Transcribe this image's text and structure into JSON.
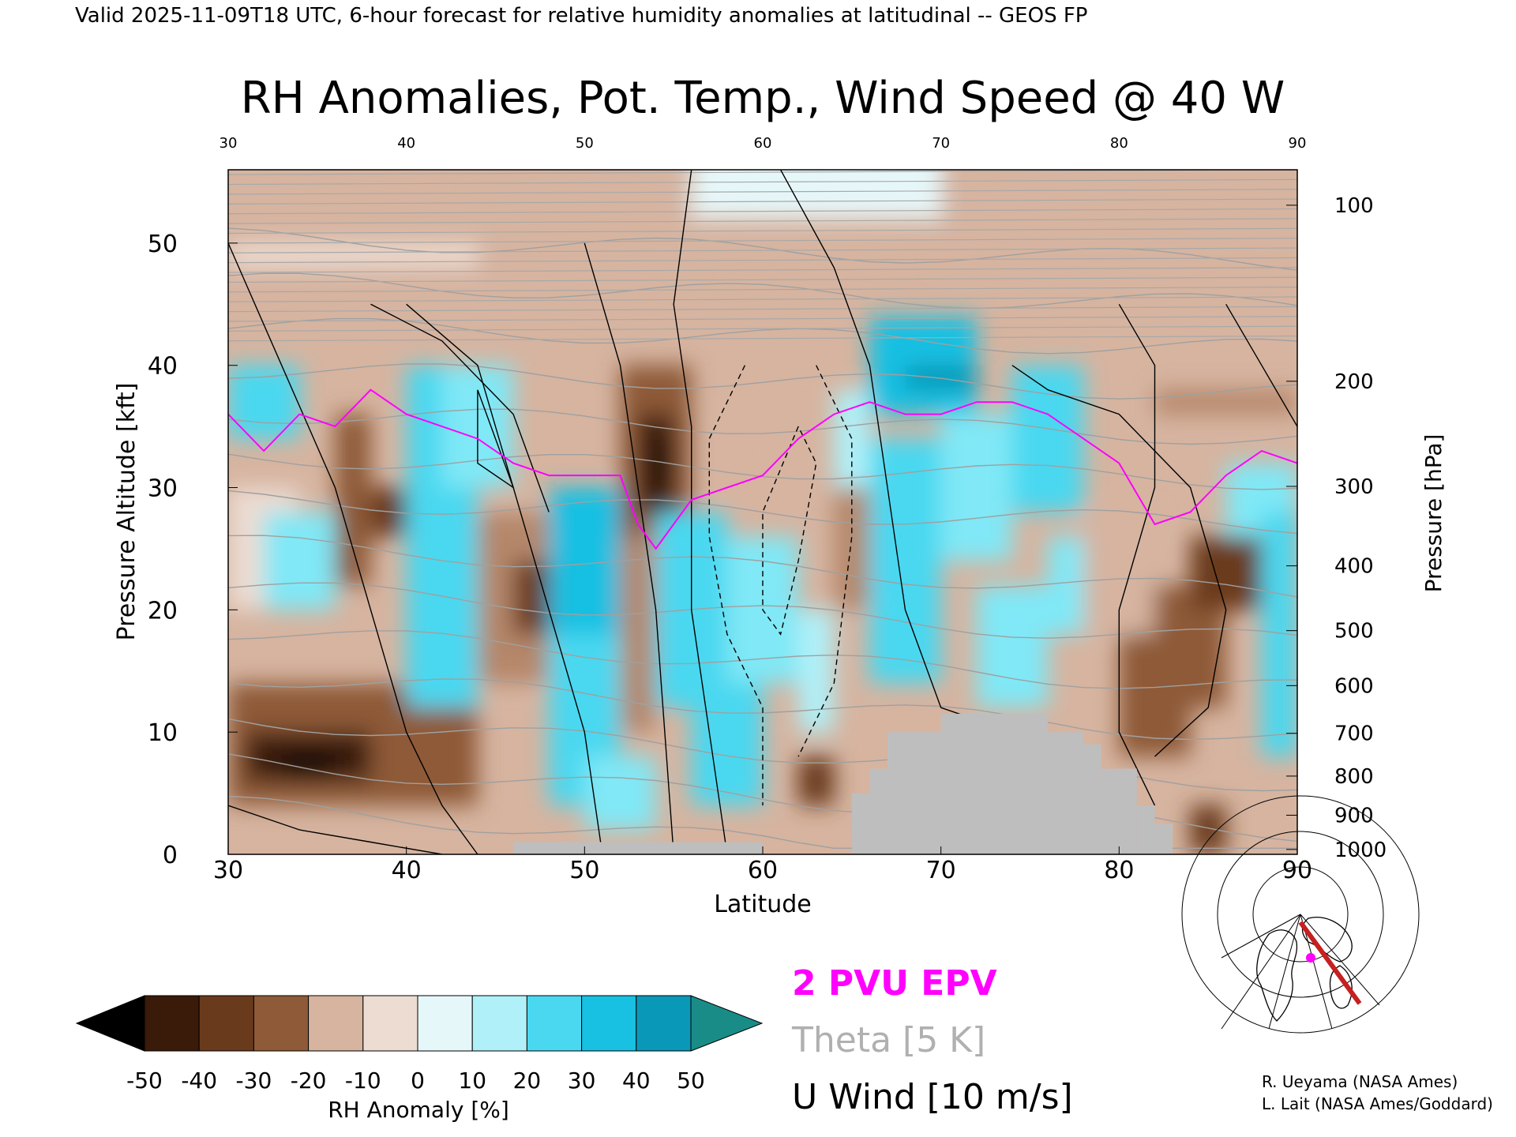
{
  "header": "Valid 2025-11-09T18 UTC, 6-hour forecast for relative humidity anomalies at latitudinal -- GEOS FP",
  "chart_data": {
    "type": "heatmap",
    "title": "RH Anomalies, Pot. Temp., Wind Speed @ 40 W",
    "xlabel": "Latitude",
    "ylabel": "Pressure Altitude [kft]",
    "y2label": "Pressure [hPa]",
    "xlim": [
      30,
      90
    ],
    "ylim": [
      0,
      56
    ],
    "x_ticks": [
      30,
      40,
      50,
      60,
      70,
      80,
      90
    ],
    "y_ticks": [
      0,
      10,
      20,
      30,
      40,
      50
    ],
    "pressure_ticks": [
      {
        "label": "100",
        "kft": 53.1
      },
      {
        "label": "200",
        "kft": 38.7
      },
      {
        "label": "300",
        "kft": 30.1
      },
      {
        "label": "400",
        "kft": 23.6
      },
      {
        "label": "500",
        "kft": 18.3
      },
      {
        "label": "600",
        "kft": 13.8
      },
      {
        "label": "700",
        "kft": 9.9
      },
      {
        "label": "800",
        "kft": 6.4
      },
      {
        "label": "900",
        "kft": 3.2
      },
      {
        "label": "1000",
        "kft": 0.4
      }
    ],
    "colorbar": {
      "label": "RH Anomaly [%]",
      "ticks": [
        "-50",
        "-40",
        "-30",
        "-20",
        "-10",
        "0",
        "10",
        "20",
        "30",
        "40",
        "50"
      ],
      "colors": [
        "#000000",
        "#3a1a08",
        "#6a3a1c",
        "#8e5a38",
        "#b5876a",
        "#d6b4a0",
        "#ecdcd2",
        "#e6f7f9",
        "#b0f0f8",
        "#80e8f6",
        "#4ad8f0",
        "#18c0e2",
        "#0a98b8",
        "#1a8c88"
      ]
    },
    "theta_levels": [
      290,
      300,
      310,
      320,
      330,
      340,
      350,
      360,
      370,
      380,
      390,
      400,
      410,
      420
    ],
    "wind_levels": [
      -10,
      0,
      10,
      30
    ],
    "epv_2pvu": [
      [
        30,
        36
      ],
      [
        32,
        33
      ],
      [
        34,
        36
      ],
      [
        36,
        35
      ],
      [
        38,
        38
      ],
      [
        40,
        36
      ],
      [
        42,
        35
      ],
      [
        44,
        34
      ],
      [
        46,
        32
      ],
      [
        48,
        31
      ],
      [
        50,
        31
      ],
      [
        52,
        31
      ],
      [
        53,
        27
      ],
      [
        54,
        25
      ],
      [
        56,
        29
      ],
      [
        58,
        30
      ],
      [
        60,
        31
      ],
      [
        62,
        34
      ],
      [
        64,
        36
      ],
      [
        66,
        37
      ],
      [
        68,
        36
      ],
      [
        70,
        36
      ],
      [
        72,
        37
      ],
      [
        74,
        37
      ],
      [
        76,
        36
      ],
      [
        78,
        34
      ],
      [
        80,
        32
      ],
      [
        82,
        27
      ],
      [
        84,
        28
      ],
      [
        86,
        31
      ],
      [
        88,
        33
      ],
      [
        90,
        32
      ]
    ],
    "legend": [
      {
        "label": "2 PVU EPV",
        "color": "#ff00ff"
      },
      {
        "label": "Theta [5 K]",
        "color": "#b0b0b0"
      },
      {
        "label": "U Wind [10 m/s]",
        "color": "#000000"
      }
    ],
    "credits": [
      "R. Ueyama (NASA Ames)",
      "L. Lait (NASA Ames/Goddard)"
    ]
  }
}
